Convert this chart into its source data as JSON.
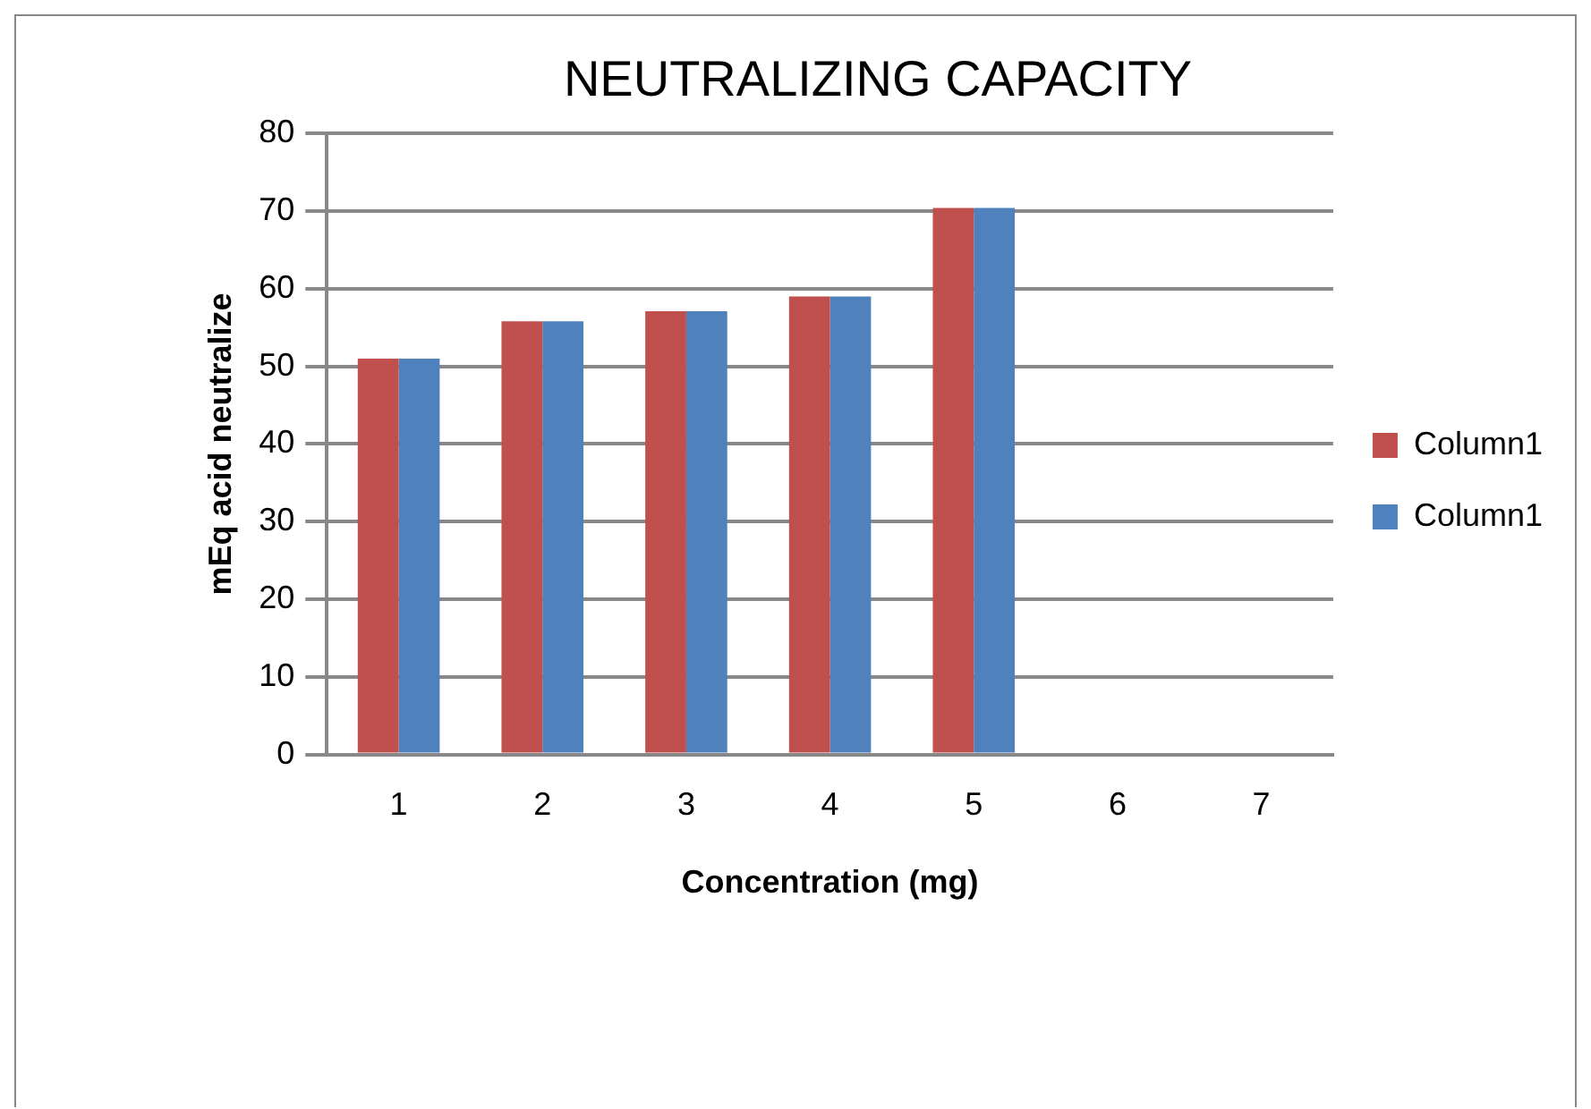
{
  "chart_data": {
    "type": "bar",
    "title": "NEUTRALIZING CAPACITY",
    "xlabel": "Concentration (mg)",
    "ylabel": "mEq acid neutralize",
    "categories": [
      "1",
      "2",
      "3",
      "4",
      "5",
      "6",
      "7"
    ],
    "series": [
      {
        "name": "Column1",
        "color": "#c0504d",
        "values": [
          51,
          55.8,
          57.1,
          59,
          70.4,
          null,
          null
        ]
      },
      {
        "name": "Column1",
        "color": "#4f81bd",
        "values": [
          51,
          55.8,
          57.1,
          59,
          70.4,
          null,
          null
        ]
      }
    ],
    "ylim": [
      0,
      80
    ],
    "yticks": [
      0,
      10,
      20,
      30,
      40,
      50,
      60,
      70,
      80
    ],
    "grid": "y",
    "legend": "right"
  }
}
